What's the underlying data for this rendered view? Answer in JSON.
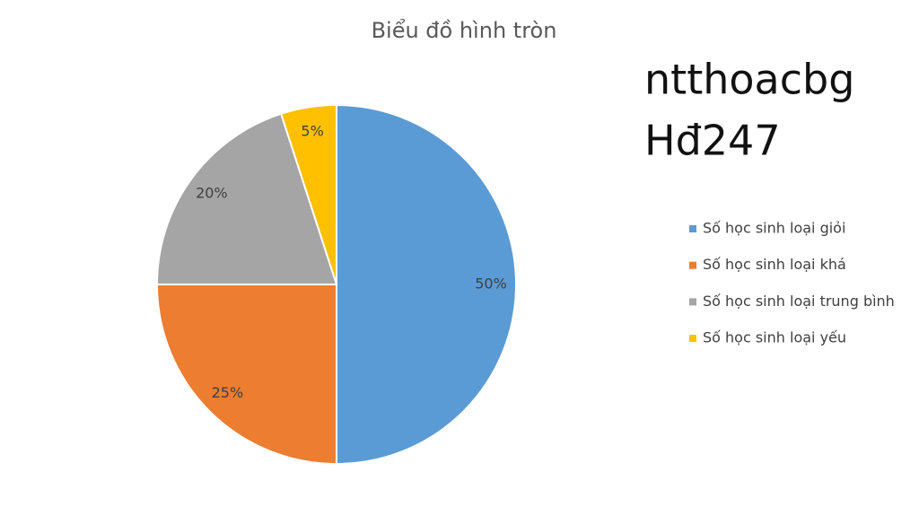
{
  "chart_data": {
    "type": "pie",
    "title": "Biểu đồ hình tròn",
    "categories": [
      "Số học sinh loại giỏi",
      "Số học sinh loại khá",
      "Số học sinh loại trung bình",
      "Số học sinh loại yếu"
    ],
    "values": [
      50,
      25,
      20,
      5
    ],
    "value_labels": [
      "50%",
      "25%",
      "20%",
      "5%"
    ],
    "colors": [
      "#5b9bd5",
      "#ed7d31",
      "#a5a5a5",
      "#ffc000"
    ],
    "legend": "right",
    "annotations": [
      "ntthoacbg",
      "Hđ247"
    ]
  }
}
